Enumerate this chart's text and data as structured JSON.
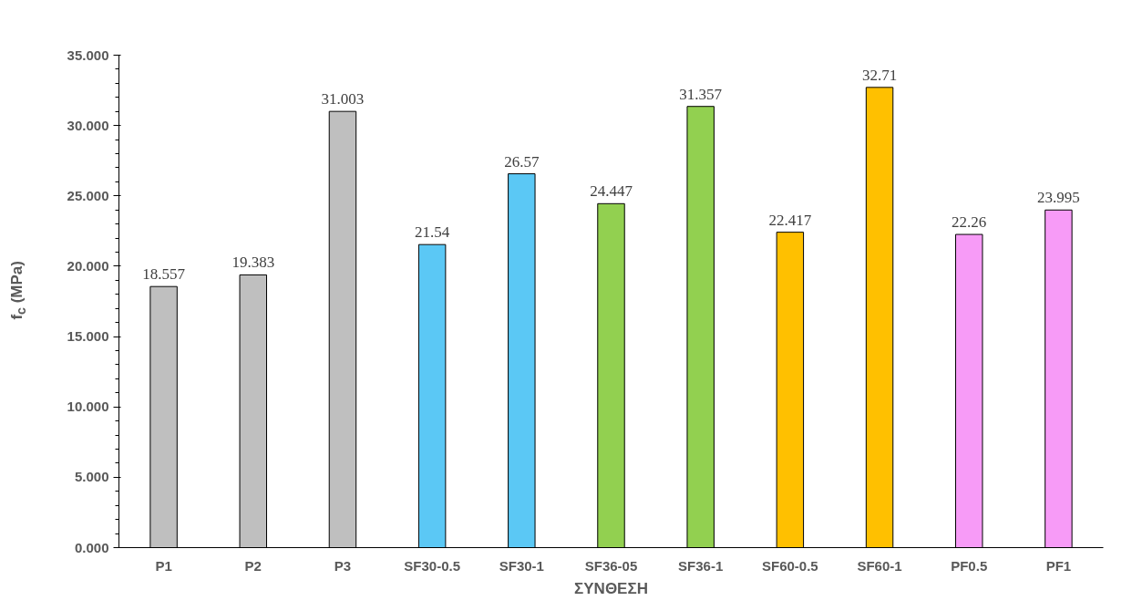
{
  "chart_data": {
    "type": "bar",
    "xlabel": "ΣΥΝΘΕΣΗ",
    "ylabel": "f$_{c}$ (MPa)",
    "categories": [
      "P1",
      "P2",
      "P3",
      "SF30-0.5",
      "SF30-1",
      "SF36-05",
      "SF36-1",
      "SF60-0.5",
      "SF60-1",
      "PF0.5",
      "PF1"
    ],
    "values": [
      18.557,
      19.383,
      31.003,
      21.54,
      26.57,
      24.447,
      31.357,
      22.417,
      32.71,
      22.26,
      23.995
    ],
    "colors": [
      "#bfbfbf",
      "#bfbfbf",
      "#bfbfbf",
      "#5bc8f5",
      "#5bc8f5",
      "#92d050",
      "#92d050",
      "#ffc000",
      "#ffc000",
      "#f79bf7",
      "#f79bf7"
    ],
    "ylim": [
      0,
      35
    ],
    "yticks": [
      {
        "value": 0,
        "label": "0.000"
      },
      {
        "value": 5,
        "label": "5.000"
      },
      {
        "value": 10,
        "label": "10.000"
      },
      {
        "value": 15,
        "label": "15.000"
      },
      {
        "value": 20,
        "label": "20.000"
      },
      {
        "value": 25,
        "label": "25.000"
      },
      {
        "value": 30,
        "label": "30.000"
      },
      {
        "value": 35,
        "label": "35.000"
      }
    ],
    "grid": false,
    "data_labels": true
  }
}
